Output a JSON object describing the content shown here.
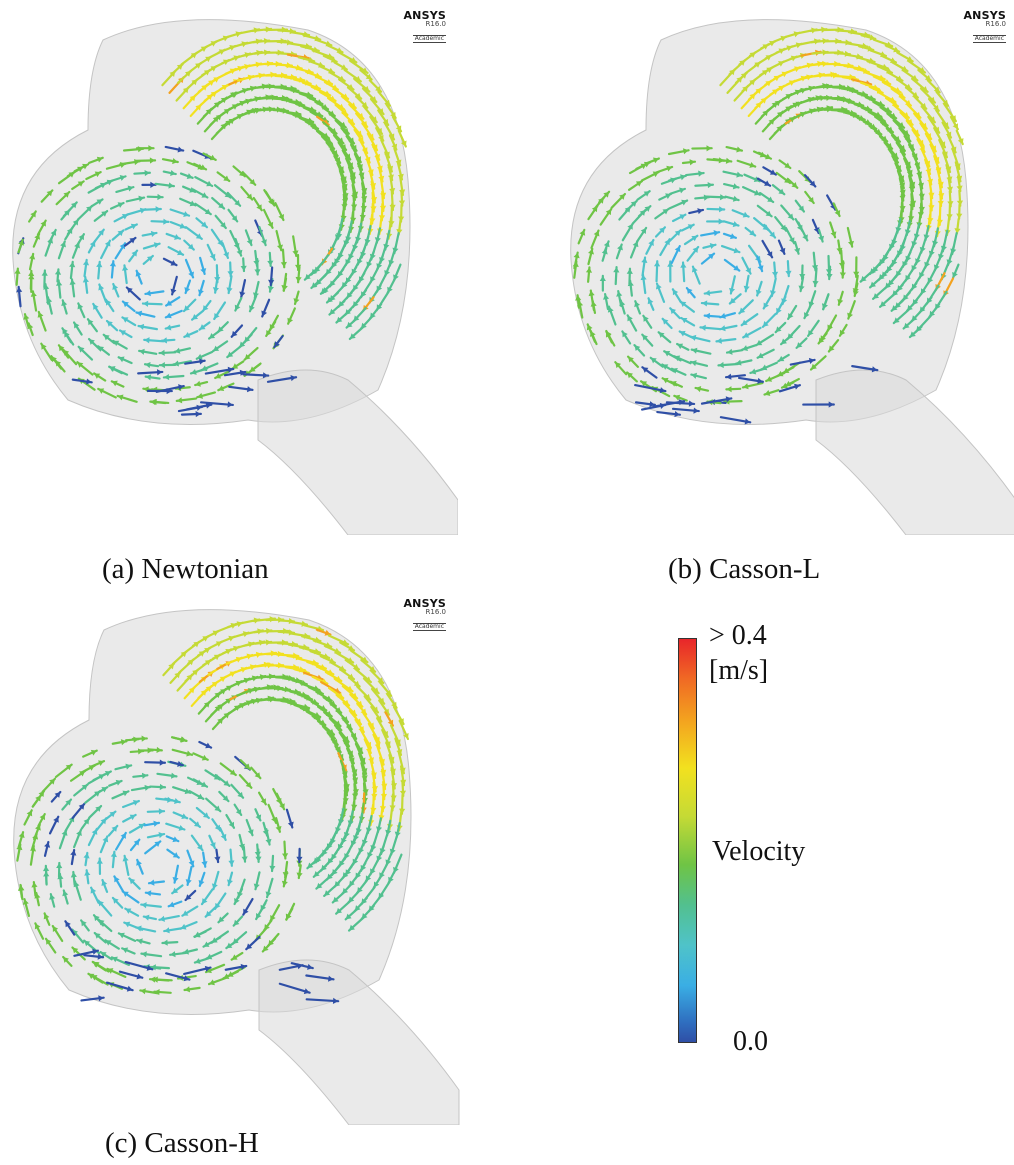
{
  "panels": [
    {
      "id": "a",
      "caption": "(a) Newtonian",
      "logo": {
        "brand": "ANSYS",
        "version": "R16.0",
        "edition": "Academic"
      }
    },
    {
      "id": "b",
      "caption": "(b) Casson-L",
      "logo": {
        "brand": "ANSYS",
        "version": "R16.0",
        "edition": "Academic"
      }
    },
    {
      "id": "c",
      "caption": "(c) Casson-H",
      "logo": {
        "brand": "ANSYS",
        "version": "R16.0",
        "edition": "Academic"
      }
    }
  ],
  "colorbar": {
    "max_label": "> 0.4",
    "unit": "[m/s]",
    "variable": "Velocity",
    "min_label": "0.0",
    "colors": [
      "#2f4fa6",
      "#3aaee4",
      "#4fc3c9",
      "#52c08f",
      "#6fc445",
      "#c5da35",
      "#f2e11f",
      "#f3a21f",
      "#e8262a"
    ]
  }
}
